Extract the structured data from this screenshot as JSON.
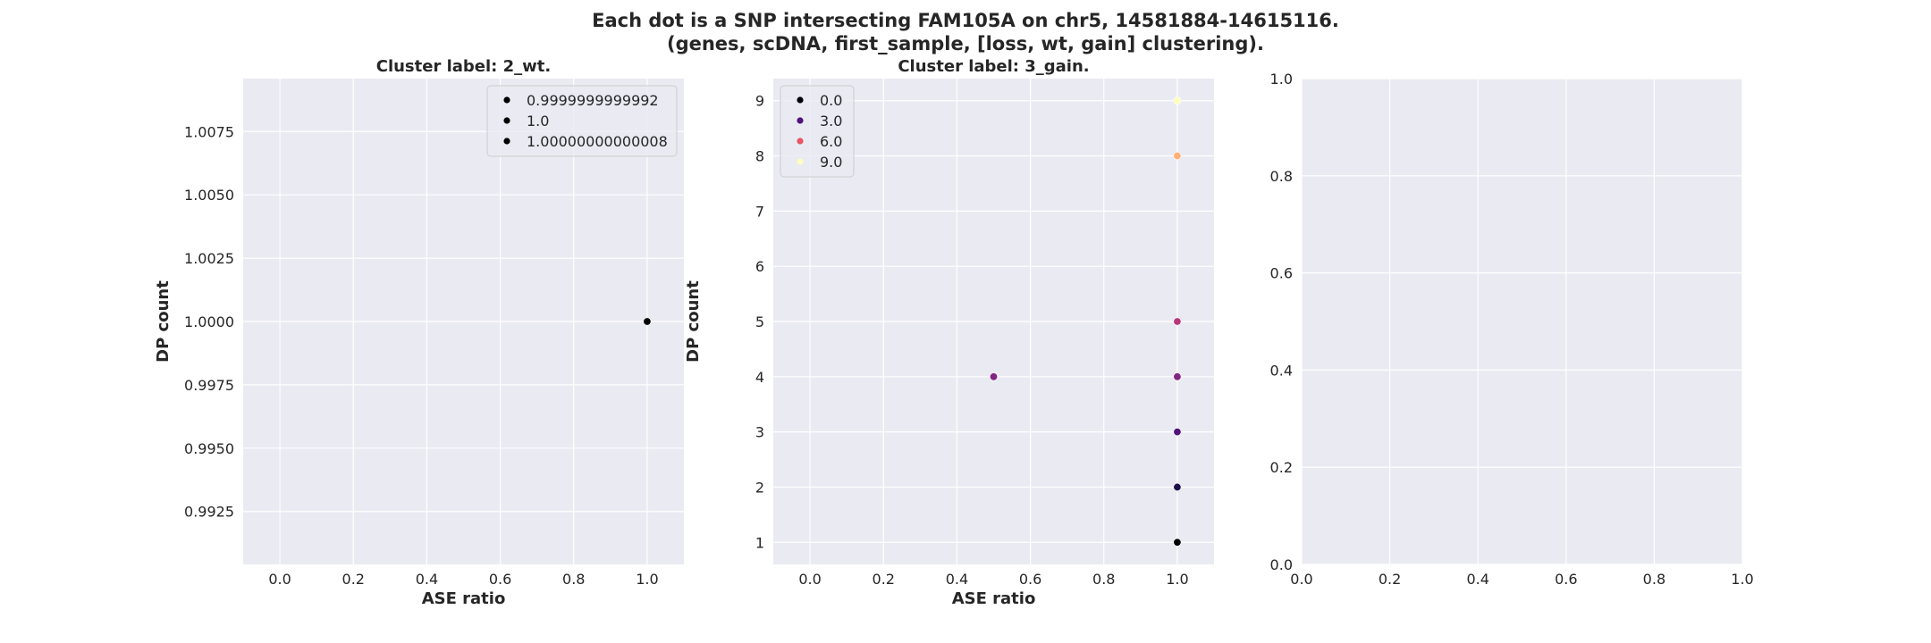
{
  "figure": {
    "title_line1": "Each dot is a SNP intersecting FAM105A on chr5, 14581884-14615116.",
    "title_line2": "(genes, scDNA, first_sample, [loss, wt, gain] clustering)."
  },
  "chart_data": [
    {
      "type": "scatter",
      "title": "Cluster label: 2_wt.",
      "xlabel": "ASE ratio",
      "ylabel": "DP count",
      "xlim": [
        -0.1,
        1.1
      ],
      "ylim": [
        0.99041,
        1.00959
      ],
      "xticks": [
        "0.0",
        "0.2",
        "0.4",
        "0.6",
        "0.8",
        "1.0"
      ],
      "yticks": [
        "0.9925",
        "0.9950",
        "0.9975",
        "1.0000",
        "1.0025",
        "1.0050",
        "1.0075"
      ],
      "grid": true,
      "legend_position": "upper right",
      "legend": [
        {
          "label": "0.9999999999992",
          "color": "#000000"
        },
        {
          "label": "1.0",
          "color": "#000000"
        },
        {
          "label": "1.00000000000008",
          "color": "#000000"
        }
      ],
      "points": [
        {
          "x": 1.0,
          "y": 1.0,
          "color": "#000000"
        }
      ]
    },
    {
      "type": "scatter",
      "title": "Cluster label: 3_gain.",
      "xlabel": "ASE ratio",
      "ylabel": "DP count",
      "xlim": [
        -0.1,
        1.1
      ],
      "ylim": [
        0.6,
        9.4
      ],
      "xticks": [
        "0.0",
        "0.2",
        "0.4",
        "0.6",
        "0.8",
        "1.0"
      ],
      "yticks": [
        "1",
        "2",
        "3",
        "4",
        "5",
        "6",
        "7",
        "8",
        "9"
      ],
      "grid": true,
      "legend_position": "upper left",
      "legend": [
        {
          "label": "0.0",
          "color": "#000004"
        },
        {
          "label": "3.0",
          "color": "#51127c"
        },
        {
          "label": "6.0",
          "color": "#e95462"
        },
        {
          "label": "9.0",
          "color": "#fcfdbf"
        }
      ],
      "points": [
        {
          "x": 1.0,
          "y": 1,
          "color": "#000004"
        },
        {
          "x": 1.0,
          "y": 2,
          "color": "#1d1147"
        },
        {
          "x": 1.0,
          "y": 3,
          "color": "#51127c"
        },
        {
          "x": 1.0,
          "y": 4,
          "color": "#822681"
        },
        {
          "x": 0.5,
          "y": 4,
          "color": "#822681"
        },
        {
          "x": 1.0,
          "y": 5,
          "color": "#b73779"
        },
        {
          "x": 1.0,
          "y": 8,
          "color": "#feb078"
        },
        {
          "x": 1.0,
          "y": 9,
          "color": "#fcfdbf"
        }
      ]
    },
    {
      "type": "scatter",
      "title": "",
      "xlabel": "",
      "ylabel": "",
      "xlim": [
        0.0,
        1.0
      ],
      "ylim": [
        0.0,
        1.0
      ],
      "xticks": [
        "0.0",
        "0.2",
        "0.4",
        "0.6",
        "0.8",
        "1.0"
      ],
      "yticks": [
        "0.0",
        "0.2",
        "0.4",
        "0.6",
        "0.8",
        "1.0"
      ],
      "grid": true,
      "legend": [],
      "points": []
    }
  ]
}
